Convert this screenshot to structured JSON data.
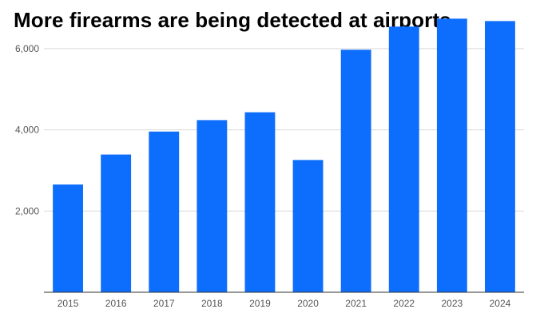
{
  "chart_data": {
    "type": "bar",
    "title": "More firearms are being detected at airports",
    "categories": [
      "2015",
      "2016",
      "2017",
      "2018",
      "2019",
      "2020",
      "2021",
      "2022",
      "2023",
      "2024"
    ],
    "values": [
      2653,
      3391,
      3957,
      4239,
      4432,
      3257,
      5972,
      6542,
      6737,
      6678
    ],
    "ylim": [
      0,
      7000
    ],
    "yticks": [
      2000,
      4000,
      6000
    ],
    "ytick_labels": [
      "2,000",
      "4,000",
      "6,000"
    ],
    "grid": true,
    "bar_color": "#0d6efd",
    "grid_color": "#d9d9d9",
    "axis_color": "#333333"
  }
}
